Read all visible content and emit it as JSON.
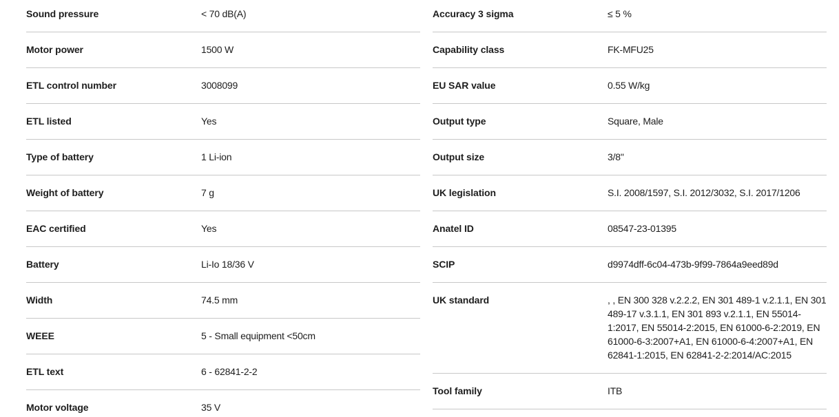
{
  "spec_table": {
    "colors": {
      "background": "#ffffff",
      "text": "#1d1d1d",
      "divider": "#c7c7c7"
    },
    "left_column": {
      "rows": [
        {
          "label": "Sound pressure",
          "value": "< 70 dB(A)"
        },
        {
          "label": "Motor power",
          "value": "1500 W"
        },
        {
          "label": "ETL control number",
          "value": "3008099"
        },
        {
          "label": "ETL listed",
          "value": "Yes"
        },
        {
          "label": "Type of battery",
          "value": "1 Li-ion"
        },
        {
          "label": "Weight of battery",
          "value": "7 g"
        },
        {
          "label": "EAC certified",
          "value": "Yes"
        },
        {
          "label": "Battery",
          "value": "Li-Io 18/36 V"
        },
        {
          "label": "Width",
          "value": "74.5 mm"
        },
        {
          "label": "WEEE",
          "value": "5 - Small equipment <50cm"
        },
        {
          "label": "ETL text",
          "value": "6 - 62841-2-2"
        },
        {
          "label": "Motor voltage",
          "value": "35 V"
        }
      ]
    },
    "right_column": {
      "rows": [
        {
          "label": "Accuracy 3 sigma",
          "value": "≤ 5 %"
        },
        {
          "label": "Capability class",
          "value": "FK-MFU25"
        },
        {
          "label": "EU SAR value",
          "value": "0.55 W/kg"
        },
        {
          "label": "Output type",
          "value": "Square, Male"
        },
        {
          "label": "Output size",
          "value": "3/8\""
        },
        {
          "label": "UK legislation",
          "value": "S.I. 2008/1597, S.I. 2012/3032, S.I. 2017/1206"
        },
        {
          "label": "Anatel ID",
          "value": "08547-23-01395"
        },
        {
          "label": "SCIP",
          "value": "d9974dff-6c04-473b-9f99-7864a9eed89d"
        },
        {
          "label": "UK standard",
          "value": ", , EN 300 328 v.2.2.2, EN 301 489-1 v.2.1.1, EN 301 489-17 v.3.1.1, EN 301 893 v.2.1.1, EN 55014-1:2017, EN 55014-2:2015, EN 61000-6-2:2019, EN 61000-6-3:2007+A1, EN 61000-6-4:2007+A1, EN 62841-1:2015, EN 62841-2-2:2014/AC:2015"
        },
        {
          "label": "Tool family",
          "value": "ITB"
        }
      ]
    }
  }
}
